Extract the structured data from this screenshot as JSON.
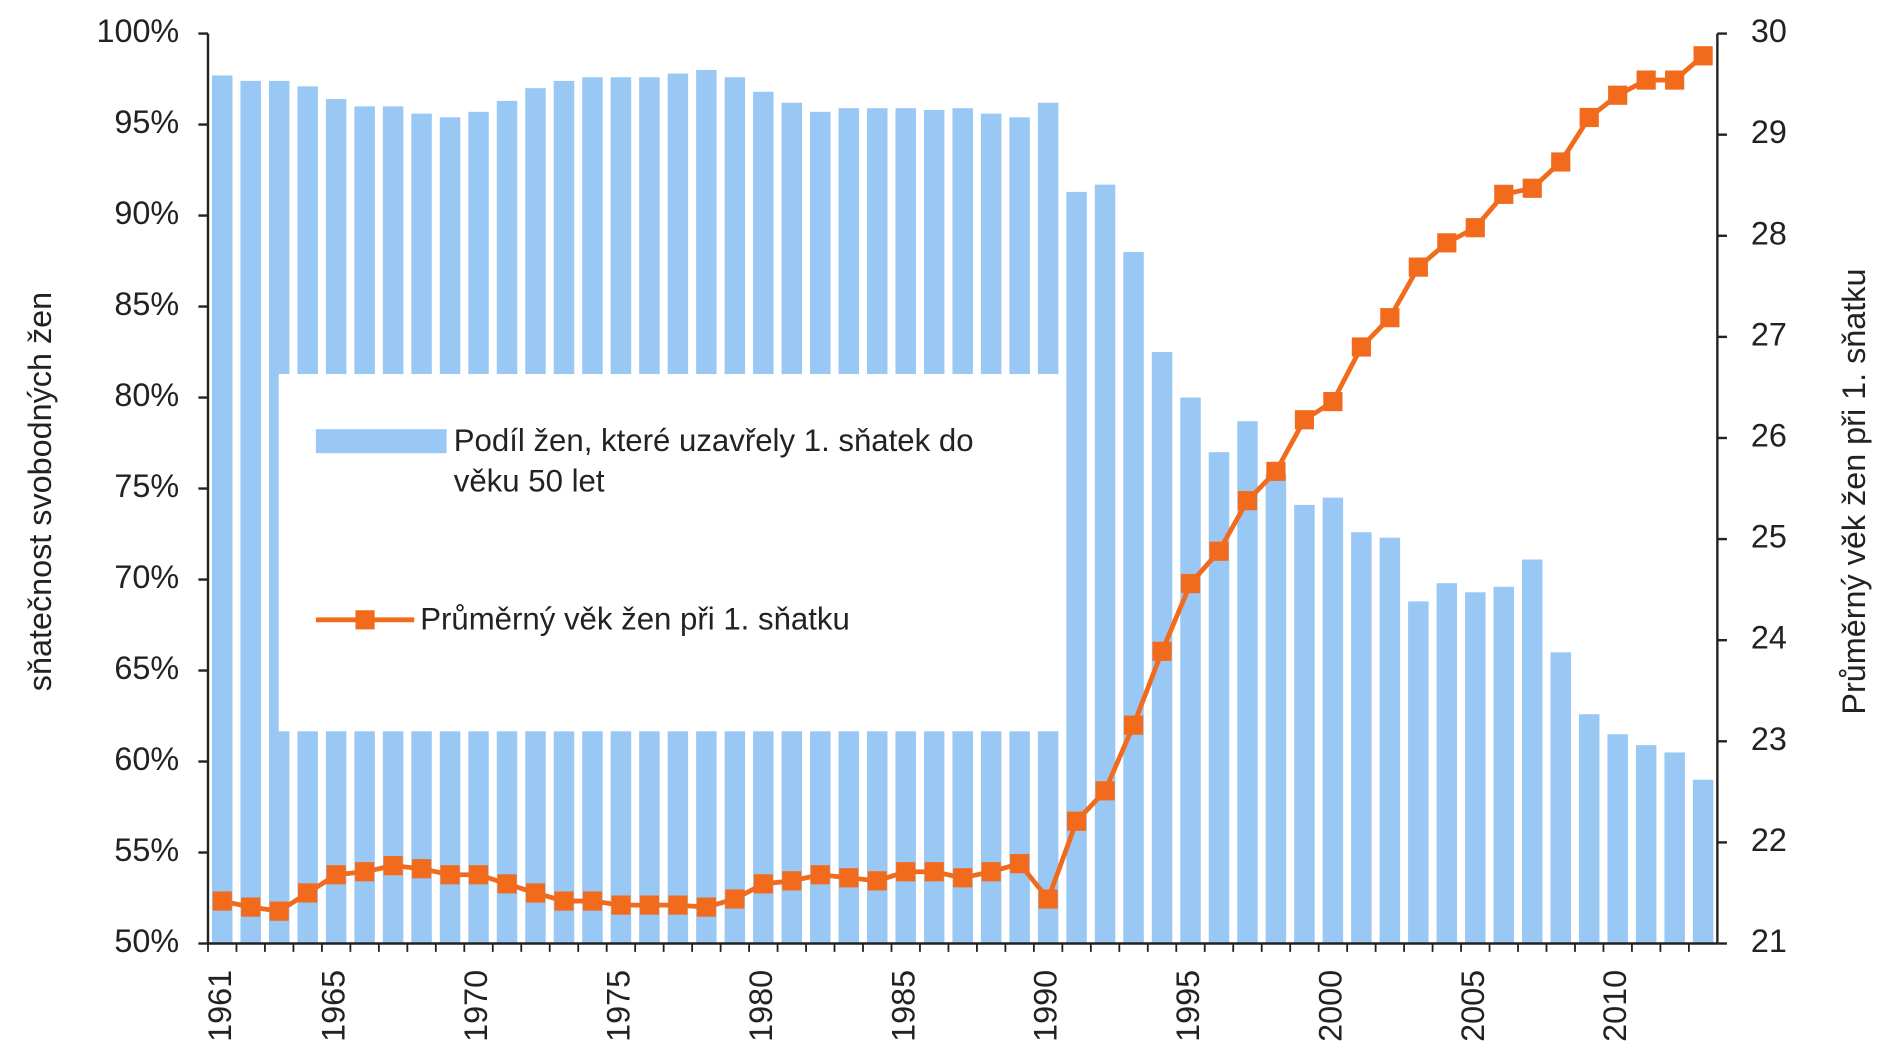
{
  "chart_data": {
    "type": "bar",
    "y_label": "sňatečnost svobodných žen",
    "y2_label": "Průměrný věk žen při 1. sňatku",
    "categories": [
      "1961",
      null,
      null,
      null,
      "1965",
      null,
      null,
      null,
      null,
      "1970",
      null,
      null,
      null,
      null,
      "1975",
      null,
      null,
      null,
      null,
      "1980",
      null,
      null,
      null,
      null,
      "1985",
      null,
      null,
      null,
      null,
      "1990",
      null,
      null,
      null,
      null,
      "1995",
      null,
      null,
      null,
      null,
      "2000",
      null,
      null,
      null,
      null,
      "2005",
      null,
      null,
      null,
      null,
      "2010",
      null,
      null,
      null
    ],
    "series": [
      {
        "name": "Podíl žen, které uzavřely 1. sňatek do věku 50 let",
        "type": "bar",
        "color": "#9ac8f5",
        "values": [
          97.7,
          97.4,
          97.4,
          97.1,
          96.4,
          96.0,
          96.0,
          95.6,
          95.4,
          95.7,
          96.3,
          97.0,
          97.4,
          97.6,
          97.6,
          97.6,
          97.8,
          98.0,
          97.6,
          96.8,
          96.2,
          95.7,
          95.9,
          95.9,
          95.9,
          95.8,
          95.9,
          95.6,
          95.4,
          96.2,
          91.3,
          91.7,
          88.0,
          82.5,
          80.0,
          77.0,
          78.7,
          75.8,
          74.1,
          74.5,
          72.6,
          72.3,
          68.8,
          69.8,
          69.3,
          69.6,
          71.1,
          66.0,
          62.6,
          61.5,
          60.9,
          60.5,
          59.0
        ]
      },
      {
        "name": "Průměrný věk žen při 1. sňatku",
        "type": "line",
        "axis": "y2",
        "color": "#f26a1c",
        "values": [
          21.42,
          21.36,
          21.32,
          21.5,
          21.68,
          21.71,
          21.77,
          21.74,
          21.68,
          21.68,
          21.59,
          21.5,
          21.42,
          21.42,
          21.38,
          21.38,
          21.38,
          21.36,
          21.44,
          21.59,
          21.62,
          21.68,
          21.65,
          21.62,
          21.71,
          21.71,
          21.65,
          21.71,
          21.79,
          21.44,
          22.21,
          22.51,
          23.16,
          23.89,
          24.56,
          24.88,
          25.38,
          25.67,
          26.18,
          26.36,
          26.9,
          27.19,
          27.69,
          27.93,
          28.08,
          28.41,
          28.47,
          28.73,
          29.17,
          29.39,
          29.54,
          29.54,
          29.78
        ]
      }
    ],
    "ylim": [
      50,
      100
    ],
    "yticks": [
      {
        "value": 50,
        "label": "50%"
      },
      {
        "value": 55,
        "label": "55%"
      },
      {
        "value": 60,
        "label": "60%"
      },
      {
        "value": 65,
        "label": "65%"
      },
      {
        "value": 70,
        "label": "70%"
      },
      {
        "value": 75,
        "label": "75%"
      },
      {
        "value": 80,
        "label": "80%"
      },
      {
        "value": 85,
        "label": "85%"
      },
      {
        "value": 90,
        "label": "90%"
      },
      {
        "value": 95,
        "label": "95%"
      },
      {
        "value": 100,
        "label": "100%"
      }
    ],
    "y2lim": [
      21,
      30
    ],
    "y2ticks": [
      21,
      22,
      23,
      24,
      25,
      26,
      27,
      28,
      29,
      30
    ],
    "grid": false
  }
}
